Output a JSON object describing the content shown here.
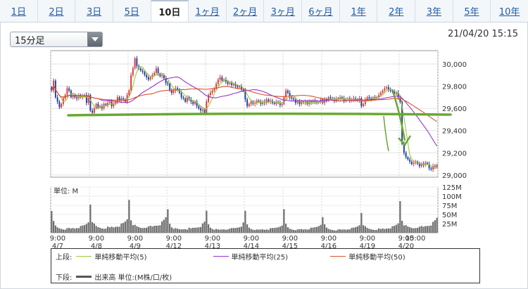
{
  "tabs": [
    {
      "label": "1日",
      "active": false
    },
    {
      "label": "2日",
      "active": false
    },
    {
      "label": "3日",
      "active": false
    },
    {
      "label": "5日",
      "active": false
    },
    {
      "label": "10日",
      "active": true
    },
    {
      "label": "1ヶ月",
      "active": false
    },
    {
      "label": "2ヶ月",
      "active": false
    },
    {
      "label": "3ヶ月",
      "active": false
    },
    {
      "label": "6ヶ月",
      "active": false
    },
    {
      "label": "1年",
      "active": false
    },
    {
      "label": "2年",
      "active": false
    },
    {
      "label": "3年",
      "active": false
    },
    {
      "label": "5年",
      "active": false
    },
    {
      "label": "10年",
      "active": false
    }
  ],
  "interval_select": {
    "value": "15分足"
  },
  "timestamp": "21/04/20 15:15",
  "legend": {
    "upper_label": "上段:",
    "lower_label": "下段:",
    "ma5": "単純移動平均(5)",
    "ma25": "単純移動平均(25)",
    "ma50": "単純移動平均(50)",
    "volume": "出来高 単位:(M株/口/枚)"
  },
  "colors": {
    "bull": "#d63a3a",
    "bear": "#1f3f99",
    "ma5": "#9cc83a",
    "ma25": "#9933cc",
    "ma50": "#d9542b",
    "volume": "#6f6f6f",
    "trendline": "#6aa832"
  },
  "chart_data": [
    {
      "type": "candlestick",
      "panel": "price",
      "y_ticks": [
        "29,000",
        "29,200",
        "29,400",
        "29,600",
        "29,800",
        "30,000"
      ],
      "ylim": [
        28980,
        30120
      ],
      "x_ticks": [
        {
          "time": "9:00",
          "date": "4/7"
        },
        {
          "time": "9:00",
          "date": "4/8"
        },
        {
          "time": "9:00",
          "date": "4/9"
        },
        {
          "time": "9:00",
          "date": "4/12"
        },
        {
          "time": "9:00",
          "date": "4/13"
        },
        {
          "time": "9:00",
          "date": "4/14"
        },
        {
          "time": "9:00",
          "date": "4/15"
        },
        {
          "time": "9:00",
          "date": "4/16"
        },
        {
          "time": "9:00",
          "date": "4/19"
        },
        {
          "time": "9:00",
          "date": "4/20"
        },
        {
          "time": "15:00",
          "date": ""
        }
      ],
      "days": [
        {
          "date": "4/7",
          "path": [
            29760,
            29850,
            29700,
            29660,
            29610,
            29640,
            29690,
            29720,
            29780,
            29760,
            29700,
            29720,
            29700,
            29690,
            29720,
            29700,
            29710,
            29720,
            29650,
            29720
          ]
        },
        {
          "date": "4/8",
          "path": [
            29580,
            29560,
            29600,
            29640,
            29610,
            29620,
            29600,
            29640,
            29630,
            29650,
            29660,
            29620,
            29640,
            29660,
            29700,
            29670,
            29690,
            29680,
            29660,
            29720
          ]
        },
        {
          "date": "4/9",
          "path": [
            29760,
            29900,
            29960,
            30050,
            29980,
            29960,
            29940,
            29930,
            29900,
            29880,
            29860,
            29880,
            29900,
            29920,
            29960,
            29910,
            29890,
            29900,
            29870,
            29830
          ]
        },
        {
          "date": "4/12",
          "path": [
            29820,
            29760,
            29740,
            29760,
            29780,
            29770,
            29740,
            29700,
            29690,
            29660,
            29700,
            29680,
            29660,
            29640,
            29660,
            29620,
            29600,
            29580,
            29590,
            29560
          ]
        },
        {
          "date": "4/13",
          "path": [
            29660,
            29720,
            29740,
            29760,
            29780,
            29820,
            29860,
            29880,
            29850,
            29860,
            29840,
            29820,
            29830,
            29810,
            29820,
            29800,
            29790,
            29800,
            29770,
            29760
          ]
        },
        {
          "date": "4/14",
          "path": [
            29680,
            29620,
            29640,
            29660,
            29640,
            29650,
            29670,
            29660,
            29640,
            29660,
            29650,
            29680,
            29660,
            29670,
            29650,
            29640,
            29660,
            29650,
            29630,
            29640
          ]
        },
        {
          "date": "4/15",
          "path": [
            29700,
            29760,
            29740,
            29700,
            29690,
            29680,
            29650,
            29660,
            29640,
            29660,
            29650,
            29660,
            29640,
            29660,
            29650,
            29670,
            29660,
            29650,
            29660,
            29680
          ]
        },
        {
          "date": "4/16",
          "path": [
            29650,
            29680,
            29670,
            29700,
            29690,
            29680,
            29670,
            29690,
            29680,
            29700,
            29690,
            29670,
            29680,
            29690,
            29670,
            29680,
            29690,
            29680,
            29670,
            29690
          ]
        },
        {
          "date": "4/19",
          "path": [
            29620,
            29640,
            29680,
            29700,
            29690,
            29680,
            29700,
            29690,
            29700,
            29720,
            29740,
            29760,
            29780,
            29790,
            29770,
            29760,
            29750,
            29730,
            29740,
            29700
          ]
        },
        {
          "date": "4/20",
          "path": [
            29660,
            29280,
            29200,
            29160,
            29140,
            29120,
            29100,
            29110,
            29120,
            29100,
            29080,
            29100,
            29090,
            29110,
            29100,
            29060,
            29050,
            29080,
            29070,
            29090
          ]
        }
      ],
      "moving_averages": [
        {
          "key": "ma5",
          "window": 5
        },
        {
          "key": "ma25",
          "window": 25
        },
        {
          "key": "ma50",
          "window": 50
        }
      ]
    },
    {
      "type": "bar",
      "panel": "volume",
      "unit_label": "単位: M",
      "y_ticks": [
        "25M",
        "50M",
        "75M",
        "100M",
        "125M"
      ],
      "ylim": [
        0,
        125
      ],
      "day_profile": [
        70,
        28,
        18,
        14,
        12,
        11,
        10,
        10,
        11,
        12,
        11,
        13,
        12,
        14,
        15,
        16,
        18,
        20,
        24,
        30
      ],
      "day_scale": [
        1.0,
        1.22,
        1.35,
        0.92,
        0.82,
        0.78,
        0.8,
        0.72,
        0.86,
        1.3
      ]
    }
  ]
}
